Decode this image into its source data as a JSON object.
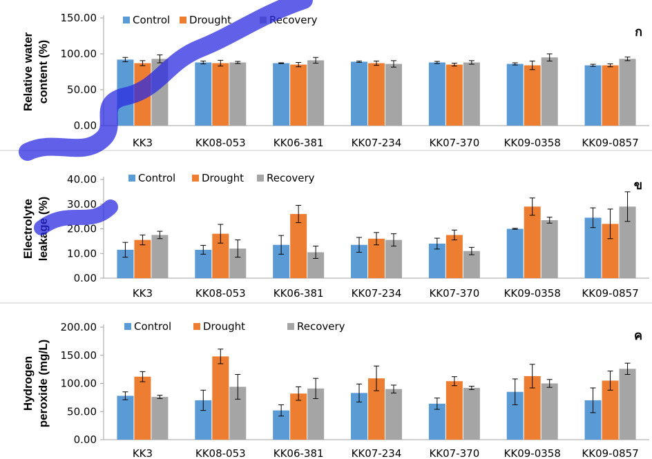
{
  "colors": {
    "control": "#5B9BD5",
    "drought": "#ED7D31",
    "recovery": "#A5A5A5",
    "axis": "#A0A0A0",
    "divider": "#C8C8C8"
  },
  "chart_data": [
    {
      "type": "bar",
      "panel_label": "ก",
      "ylabel": [
        "Relative water",
        "content (%)"
      ],
      "ylim": [
        0,
        150
      ],
      "yticks": [
        0,
        50,
        100,
        150
      ],
      "tick_labels": [
        "0.00",
        "50.00",
        "100.00",
        "150.00"
      ],
      "legend_position": "top-left",
      "categories": [
        "KK3",
        "KK08-053",
        "KK06-381",
        "KK07-234",
        "KK07-370",
        "KK09-0358",
        "KK09-0857"
      ],
      "series": [
        {
          "name": "Control",
          "values": [
            92,
            88,
            87,
            89,
            88,
            86,
            84
          ],
          "errors": [
            3,
            2,
            0.5,
            1,
            1.5,
            1.5,
            1.5
          ]
        },
        {
          "name": "Drought",
          "values": [
            87,
            87,
            85,
            87,
            85,
            84,
            84
          ],
          "errors": [
            3.5,
            4,
            3,
            3,
            2,
            6,
            2
          ]
        },
        {
          "name": "Recovery",
          "values": [
            93,
            88,
            91,
            86,
            88,
            95,
            93
          ],
          "errors": [
            5.5,
            1.5,
            4,
            4.5,
            2.5,
            5,
            2.5
          ]
        }
      ]
    },
    {
      "type": "bar",
      "panel_label": "ข",
      "ylabel": [
        "Electrolyte",
        "leakage (%)"
      ],
      "ylim": [
        0,
        40
      ],
      "yticks": [
        0,
        10,
        20,
        30,
        40
      ],
      "tick_labels": [
        "0.00",
        "10.00",
        "20.00",
        "30.00",
        "40.00"
      ],
      "legend_position": "top-left",
      "categories": [
        "KK3",
        "KK08-053",
        "KK06-381",
        "KK07-234",
        "KK07-370",
        "KK09-0358",
        "KK09-0857"
      ],
      "series": [
        {
          "name": "Control",
          "values": [
            11.5,
            11.5,
            13.5,
            13.5,
            14,
            20,
            24.5
          ],
          "errors": [
            3,
            1.8,
            3.8,
            3,
            2.2,
            0.2,
            4
          ]
        },
        {
          "name": "Drought",
          "values": [
            15.5,
            18,
            26,
            16,
            17.5,
            29,
            22
          ],
          "errors": [
            2,
            3.8,
            3.5,
            2.5,
            2,
            3.5,
            6
          ]
        },
        {
          "name": "Recovery",
          "values": [
            17.5,
            12,
            10.5,
            15.5,
            11,
            23.5,
            29
          ],
          "errors": [
            1.5,
            3.5,
            2.5,
            2.5,
            1.5,
            1.2,
            6
          ]
        }
      ]
    },
    {
      "type": "bar",
      "panel_label": "ค",
      "ylabel": [
        "Hydrogen",
        "peroxide (mg/L)"
      ],
      "ylim": [
        0,
        200
      ],
      "yticks": [
        0,
        50,
        100,
        150,
        200
      ],
      "tick_labels": [
        "0.00",
        "50.00",
        "100.00",
        "150.00",
        "200.00"
      ],
      "legend_position": "top-left",
      "categories": [
        "KK3",
        "KK08-053",
        "KK06-381",
        "KK07-234",
        "KK07-370",
        "KK09-0358",
        "KK09-0857"
      ],
      "series": [
        {
          "name": "Control",
          "values": [
            78,
            70,
            52,
            83,
            64,
            85,
            70
          ],
          "errors": [
            7,
            18,
            10,
            16,
            10,
            23,
            22
          ]
        },
        {
          "name": "Drought",
          "values": [
            112,
            148,
            82,
            109,
            104,
            113,
            105
          ],
          "errors": [
            9,
            13,
            12,
            22,
            8,
            21,
            17
          ]
        },
        {
          "name": "Recovery",
          "values": [
            76,
            94,
            91,
            90,
            92,
            100,
            126
          ],
          "errors": [
            3,
            22,
            18,
            7,
            3,
            7,
            10
          ]
        }
      ]
    }
  ]
}
